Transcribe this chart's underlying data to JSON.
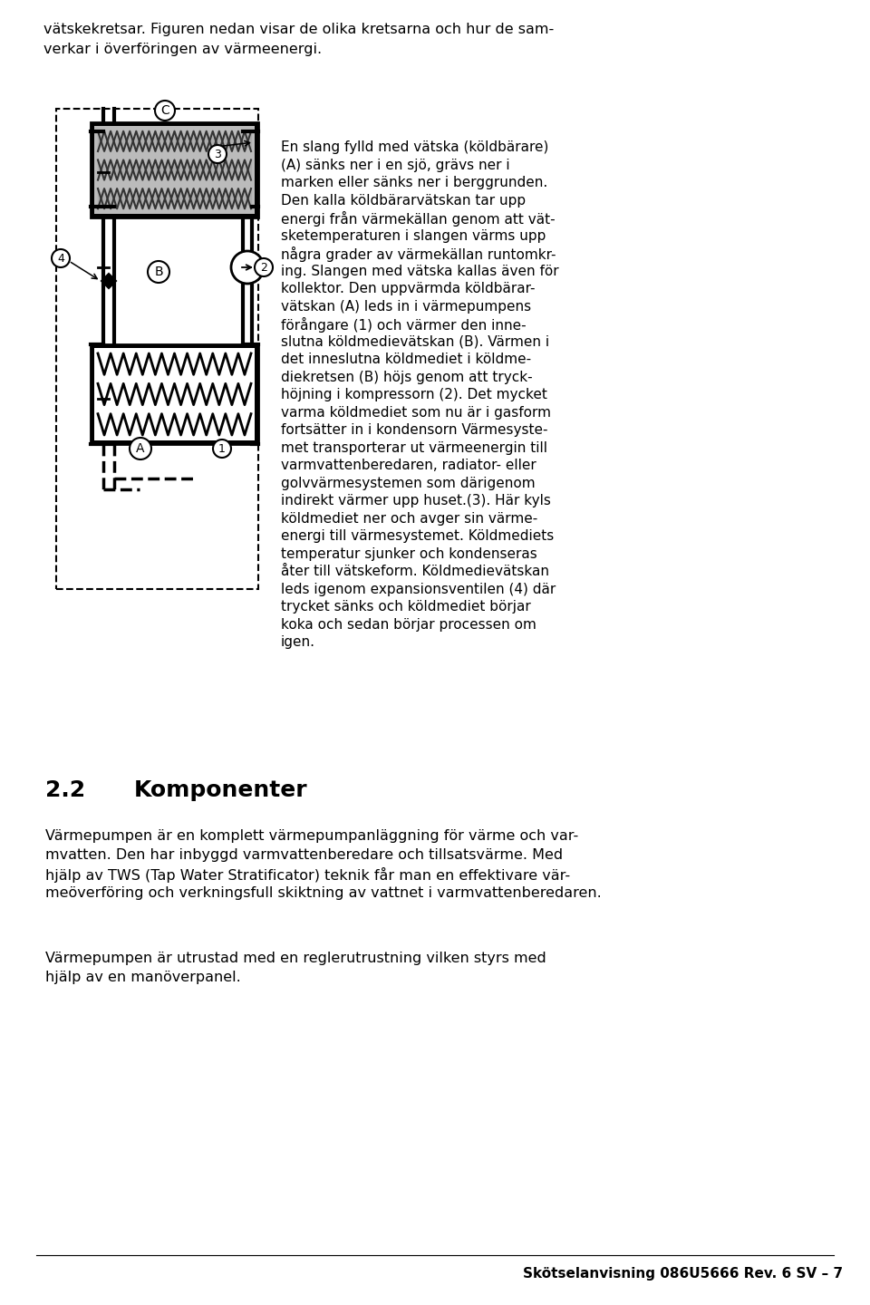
{
  "bg_color": "#ffffff",
  "text_color": "#000000",
  "top_text_line1": "vätskekretsar. Figuren nedan visar de olika kretsarna och hur de sam-",
  "top_text_line2": "verkar i överföringen av värmeenergi.",
  "right_text_lines": [
    "En slang fylld med vätska (köldbärare)",
    "(A) sänks ner i en sjö, grävs ner i",
    "marken eller sänks ner i berggrunden.",
    "Den kalla köldbärarvätskan tar upp",
    "energi från värmekällan genom att vät-",
    "sketemperaturen i slangen värms upp",
    "några grader av värmekällan runtomkr-",
    "ing. Slangen med vätska kallas även för",
    "kollektor. Den uppvärmda köldbärar-",
    "vätskan (A) leds in i värmepumpens",
    "förångare (1) och värmer den inne-",
    "slutna köldmedievätskan (B). Värmen i",
    "det inneslutna köldmediet i köldme-",
    "diekretsen (B) höjs genom att tryck-",
    "höjning i kompressorn (2). Det mycket",
    "varma köldmediet som nu är i gasform",
    "fortsätter in i kondensorn Värmesyste-",
    "met transporterar ut värmeenergin till",
    "varmvattenberedaren, radiator- eller",
    "golvvärmesystemen som därigenom",
    "indirekt värmer upp huset.(3). Här kyls",
    "köldmediet ner och avger sin värme-",
    "energi till värmesystemet. Köldmediets",
    "temperatur sjunker och kondenseras",
    "åter till vätskeform. Köldmedievätskan",
    "leds igenom expansionsventilen (4) där",
    "trycket sänks och köldmediet börjar",
    "koka och sedan börjar processen om",
    "igen."
  ],
  "section_number": "2.2",
  "section_title": "Komponenter",
  "section_body_1_lines": [
    "Värmepumpen är en komplett värmepumpanläggning för värme och var-",
    "mvatten. Den har inbyggd varmvattenberedare och tillsatsvärme. Med",
    "hjälp av TWS (Tap Water Stratificator) teknik får man en effektivare vär-",
    "meöverföring och verkningsfull skiktning av vattnet i varmvattenberedaren."
  ],
  "section_body_2_lines": [
    "Värmepumpen är utrustad med en reglerutrustning vilken styrs med",
    "hjälp av en manöverpanel."
  ],
  "footer_text": "Skötselanvisning 086U5666 Rev. 6 SV – 7"
}
